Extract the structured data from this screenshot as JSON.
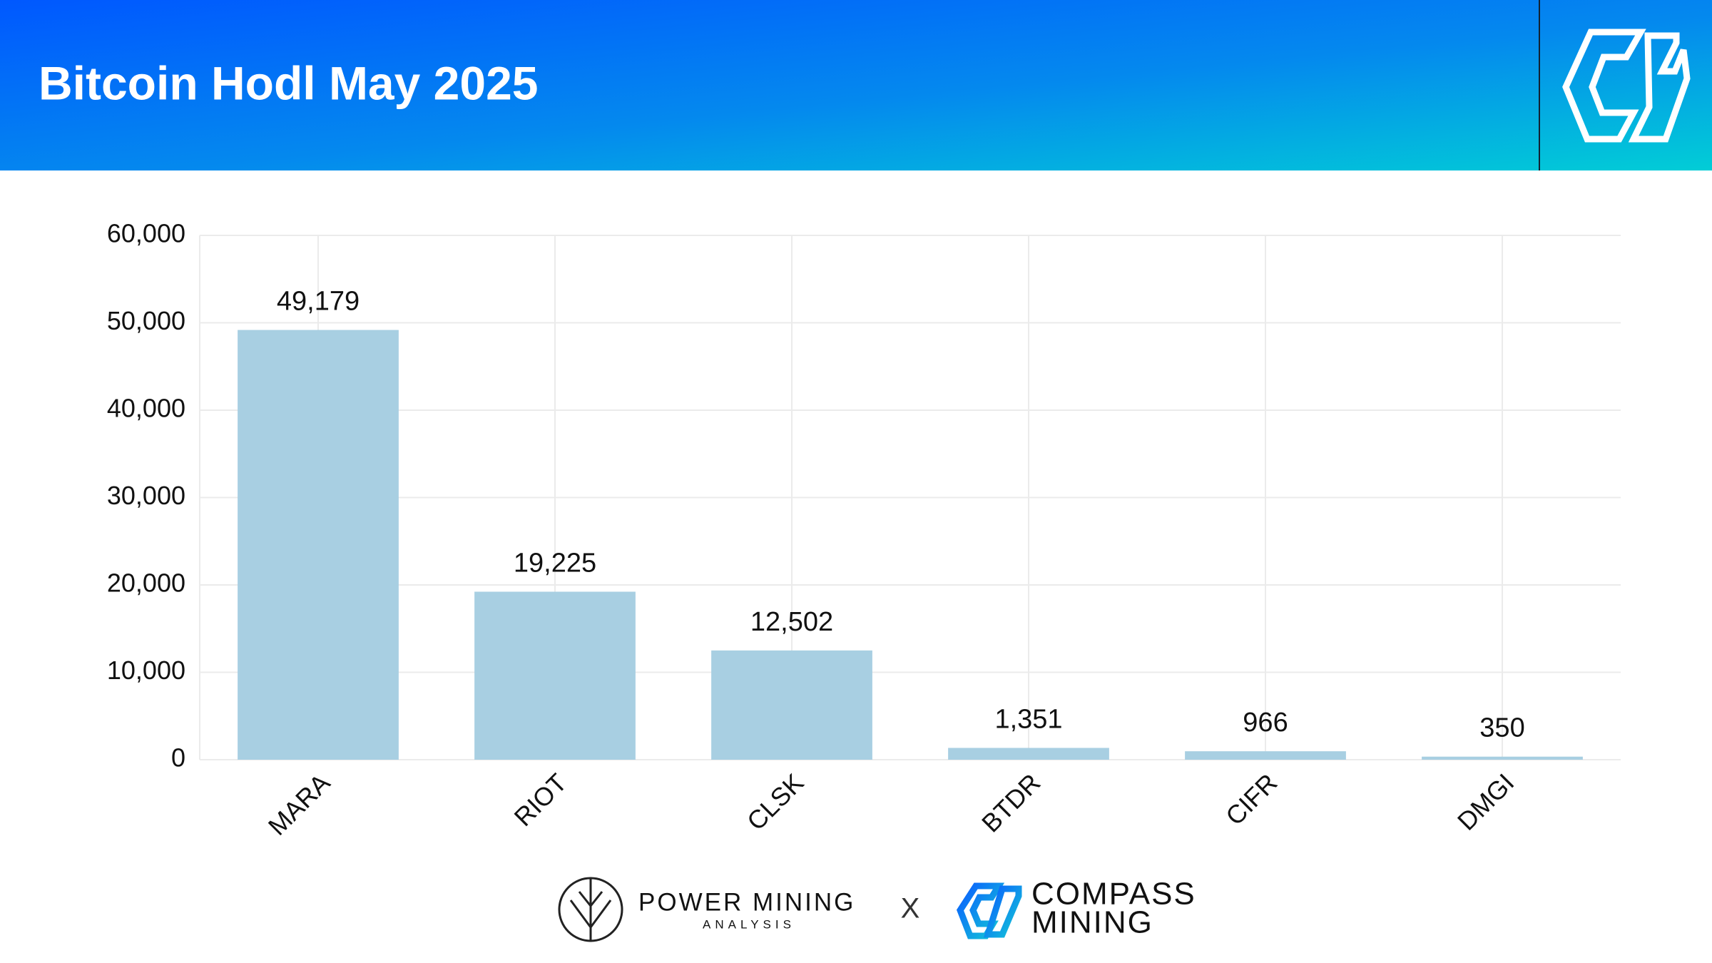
{
  "chart_data": {
    "type": "bar",
    "title": "Bitcoin Hodl May 2025",
    "categories": [
      "MARA",
      "RIOT",
      "CLSK",
      "BTDR",
      "CIFR",
      "DMGI"
    ],
    "values": [
      49179,
      19225,
      12502,
      1351,
      966,
      350
    ],
    "value_labels": [
      "49,179",
      "19,225",
      "12,502",
      "1,351",
      "966",
      "350"
    ],
    "color": "#a8cfe2",
    "ylim": [
      0,
      60000
    ],
    "yticks": [
      0,
      {
        "value": 10000,
        "label": "10,000"
      },
      {
        "value": 20000,
        "label": "20,000"
      },
      {
        "value": 30000,
        "label": "30,000"
      },
      {
        "value": 40000,
        "label": "40,000"
      },
      {
        "value": 50000,
        "label": "50,000"
      },
      {
        "value": 60000,
        "label": "60,000"
      }
    ],
    "grid": true
  },
  "footer": {
    "brand1": "POWER MINING",
    "brand1_sub": "ANALYSIS",
    "separator": "X",
    "brand2_line1": "COMPASS",
    "brand2_line2": "MINING"
  }
}
